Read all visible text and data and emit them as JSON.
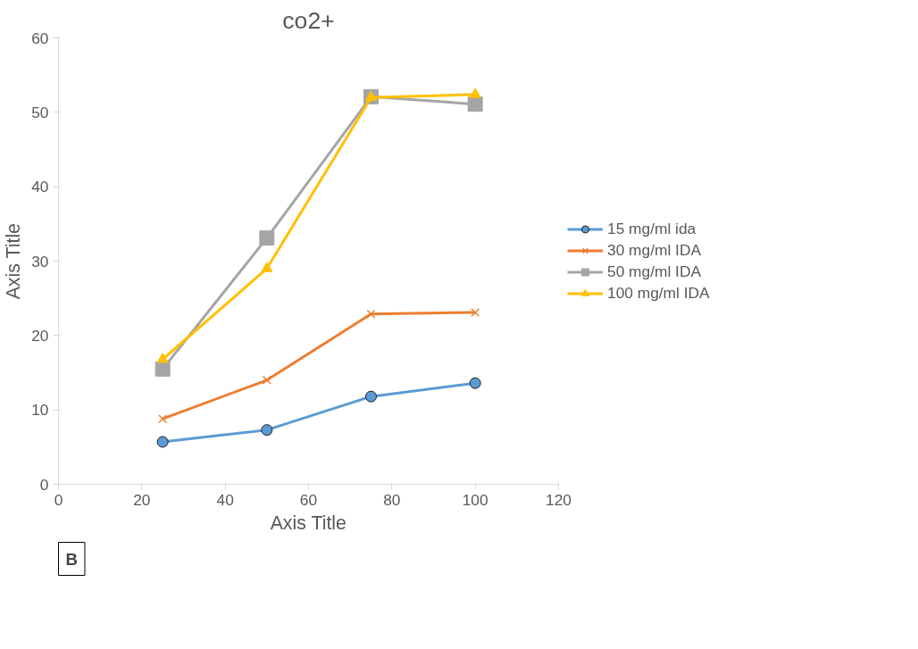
{
  "chart_data": {
    "type": "line",
    "title": "co2+",
    "xlabel": "Axis Title",
    "ylabel": "Axis Title",
    "x": [
      25,
      50,
      75,
      100
    ],
    "series": [
      {
        "name": "15 mg/ml ida",
        "color": "#5b9bd5",
        "marker": "circle",
        "values": [
          5.7,
          7.3,
          11.8,
          13.6
        ]
      },
      {
        "name": "30 mg/ml IDA",
        "color": "#ed7d31",
        "marker": "cross",
        "values": [
          8.8,
          14.0,
          22.9,
          23.1
        ]
      },
      {
        "name": "50 mg/ml IDA",
        "color": "#a5a5a5",
        "marker": "square",
        "values": [
          15.5,
          33.1,
          52.1,
          51.1
        ]
      },
      {
        "name": "100 mg/ml IDA",
        "color": "#ffc000",
        "marker": "triangle",
        "values": [
          16.8,
          29.0,
          52.0,
          52.4
        ]
      }
    ],
    "xlim": [
      0,
      120
    ],
    "xticks": [
      0,
      20,
      40,
      60,
      80,
      100,
      120
    ],
    "ylim": [
      0,
      60
    ],
    "yticks": [
      0,
      10,
      20,
      30,
      40,
      50,
      60
    ],
    "grid": false,
    "legend": "right",
    "annotations": [
      "B"
    ]
  }
}
